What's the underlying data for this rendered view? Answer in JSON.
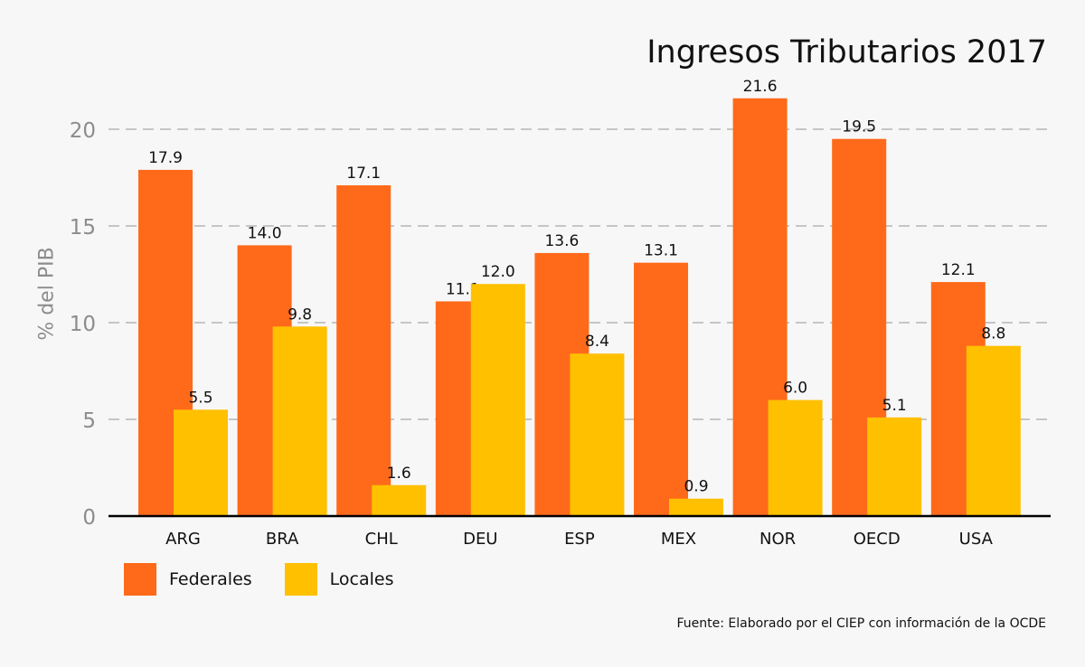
{
  "chart_data": {
    "type": "bar",
    "title": "Ingresos Tributarios 2017",
    "ylabel": "% del PIB",
    "xlabel": "",
    "categories": [
      "ARG",
      "BRA",
      "CHL",
      "DEU",
      "ESP",
      "MEX",
      "NOR",
      "OECD",
      "USA"
    ],
    "series": [
      {
        "name": "Federales",
        "color": "#ff6a1a",
        "values": [
          17.9,
          14.0,
          17.1,
          11.1,
          13.6,
          13.1,
          21.6,
          19.5,
          12.1
        ]
      },
      {
        "name": "Locales",
        "color": "#ffc000",
        "values": [
          5.5,
          9.8,
          1.6,
          12.0,
          8.4,
          0.9,
          6.0,
          5.1,
          8.8
        ]
      }
    ],
    "ylim": [
      0,
      22
    ],
    "yticks": [
      0,
      5,
      10,
      15,
      20
    ],
    "grid": true,
    "legend_position": "bottom-left",
    "source": "Fuente: Elaborado por el CIEP con información de la OCDE"
  }
}
